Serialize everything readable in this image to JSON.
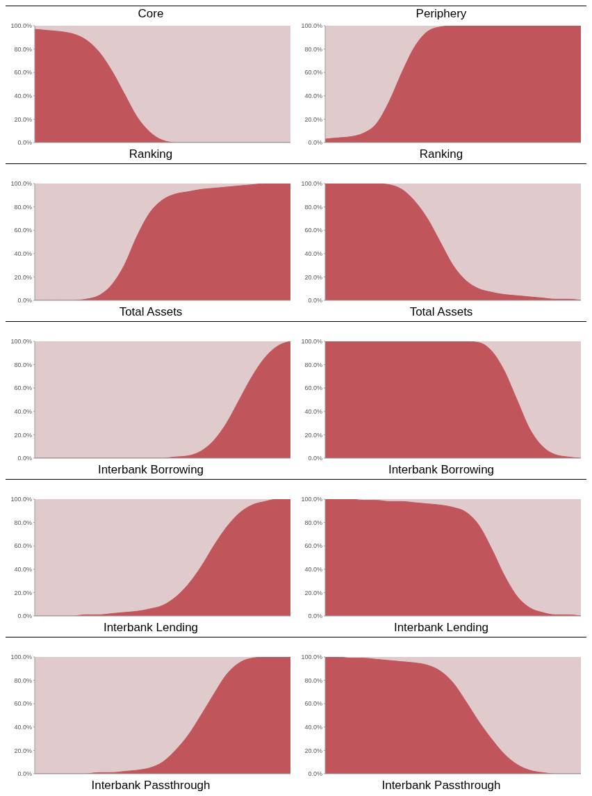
{
  "chart_data": [
    {
      "type": "area",
      "title": "Core",
      "xlabel": "Ranking",
      "ylim": [
        0,
        100
      ],
      "yticks": [
        {
          "value": 0,
          "label": "0.0%"
        },
        {
          "value": 20,
          "label": "20.0%"
        },
        {
          "value": 40,
          "label": "40.0%"
        },
        {
          "value": 60,
          "label": "60.0%"
        },
        {
          "value": 80,
          "label": "80.0%"
        },
        {
          "value": 100,
          "label": "100.0%"
        }
      ],
      "categories": [
        null,
        null,
        null,
        null,
        null,
        null,
        null,
        null,
        null,
        null,
        null,
        null,
        null,
        null,
        null,
        null,
        null,
        null,
        null,
        null,
        null
      ],
      "series": [
        {
          "color": "#c0565b",
          "values": [
            97,
            96,
            95,
            93,
            88,
            78,
            62,
            42,
            22,
            9,
            2,
            0,
            0,
            0,
            0,
            0,
            0,
            0,
            0,
            0,
            0
          ]
        }
      ]
    },
    {
      "type": "area",
      "title": "Periphery",
      "xlabel": "Ranking",
      "ylim": [
        0,
        100
      ],
      "yticks": [
        {
          "value": 0,
          "label": "0.0%"
        },
        {
          "value": 20,
          "label": "20.0%"
        },
        {
          "value": 40,
          "label": "40.0%"
        },
        {
          "value": 60,
          "label": "60.0%"
        },
        {
          "value": 80,
          "label": "80.0%"
        },
        {
          "value": 100,
          "label": "100.0%"
        }
      ],
      "categories": [
        null,
        null,
        null,
        null,
        null,
        null,
        null,
        null,
        null,
        null,
        null,
        null,
        null,
        null,
        null,
        null,
        null,
        null,
        null,
        null,
        null
      ],
      "series": [
        {
          "color": "#c0565b",
          "values": [
            3,
            4,
            5,
            8,
            16,
            35,
            60,
            82,
            95,
            99,
            100,
            100,
            100,
            100,
            100,
            100,
            100,
            100,
            100,
            100,
            100
          ]
        }
      ]
    },
    {
      "type": "area",
      "xlabel": "Total Assets",
      "ylim": [
        0,
        100
      ],
      "yticks": [
        {
          "value": 0,
          "label": "0.0%"
        },
        {
          "value": 20,
          "label": "20.0%"
        },
        {
          "value": 40,
          "label": "40.0%"
        },
        {
          "value": 60,
          "label": "60.0%"
        },
        {
          "value": 80,
          "label": "80.0%"
        },
        {
          "value": 100,
          "label": "100.0%"
        }
      ],
      "categories": [
        null,
        null,
        null,
        null,
        null,
        null,
        null,
        null,
        null,
        null,
        null,
        null,
        null,
        null,
        null,
        null,
        null,
        null,
        null,
        null,
        null
      ],
      "series": [
        {
          "color": "#c0565b",
          "values": [
            0,
            0,
            0,
            0,
            1,
            4,
            13,
            30,
            55,
            75,
            86,
            91,
            93,
            95,
            96,
            97,
            98,
            99,
            100,
            100,
            100
          ]
        }
      ]
    },
    {
      "type": "area",
      "xlabel": "Total Assets",
      "ylim": [
        0,
        100
      ],
      "yticks": [
        {
          "value": 0,
          "label": "0.0%"
        },
        {
          "value": 20,
          "label": "20.0%"
        },
        {
          "value": 40,
          "label": "40.0%"
        },
        {
          "value": 60,
          "label": "60.0%"
        },
        {
          "value": 80,
          "label": "80.0%"
        },
        {
          "value": 100,
          "label": "100.0%"
        }
      ],
      "categories": [
        null,
        null,
        null,
        null,
        null,
        null,
        null,
        null,
        null,
        null,
        null,
        null,
        null,
        null,
        null,
        null,
        null,
        null,
        null,
        null,
        null
      ],
      "series": [
        {
          "color": "#c0565b",
          "values": [
            100,
            100,
            100,
            100,
            100,
            99,
            95,
            85,
            70,
            50,
            30,
            17,
            10,
            7,
            5,
            4,
            3,
            2,
            1,
            1,
            0
          ]
        }
      ]
    },
    {
      "type": "area",
      "xlabel": "Interbank Borrowing",
      "ylim": [
        0,
        100
      ],
      "yticks": [
        {
          "value": 0,
          "label": "0.0%"
        },
        {
          "value": 20,
          "label": "20.0%"
        },
        {
          "value": 40,
          "label": "40.0%"
        },
        {
          "value": 60,
          "label": "60.0%"
        },
        {
          "value": 80,
          "label": "80.0%"
        },
        {
          "value": 100,
          "label": "100.0%"
        }
      ],
      "categories": [
        null,
        null,
        null,
        null,
        null,
        null,
        null,
        null,
        null,
        null,
        null,
        null,
        null,
        null,
        null,
        null,
        null,
        null,
        null,
        null,
        null
      ],
      "series": [
        {
          "color": "#c0565b",
          "values": [
            0,
            0,
            0,
            0,
            0,
            0,
            0,
            0,
            0,
            0,
            0,
            1,
            2,
            6,
            15,
            30,
            50,
            70,
            86,
            96,
            100
          ]
        }
      ]
    },
    {
      "type": "area",
      "xlabel": "Interbank Borrowing",
      "ylim": [
        0,
        100
      ],
      "yticks": [
        {
          "value": 0,
          "label": "0.0%"
        },
        {
          "value": 20,
          "label": "20.0%"
        },
        {
          "value": 40,
          "label": "40.0%"
        },
        {
          "value": 60,
          "label": "60.0%"
        },
        {
          "value": 80,
          "label": "80.0%"
        },
        {
          "value": 100,
          "label": "100.0%"
        }
      ],
      "categories": [
        null,
        null,
        null,
        null,
        null,
        null,
        null,
        null,
        null,
        null,
        null,
        null,
        null,
        null,
        null,
        null,
        null,
        null,
        null,
        null,
        null
      ],
      "series": [
        {
          "color": "#c0565b",
          "values": [
            100,
            100,
            100,
            100,
            100,
            100,
            100,
            100,
            100,
            100,
            100,
            100,
            99,
            92,
            75,
            50,
            25,
            10,
            3,
            1,
            0
          ]
        }
      ]
    },
    {
      "type": "area",
      "xlabel": "Interbank Lending",
      "ylim": [
        0,
        100
      ],
      "yticks": [
        {
          "value": 0,
          "label": "0.0%"
        },
        {
          "value": 20,
          "label": "20.0%"
        },
        {
          "value": 40,
          "label": "40.0%"
        },
        {
          "value": 60,
          "label": "60.0%"
        },
        {
          "value": 80,
          "label": "80.0%"
        },
        {
          "value": 100,
          "label": "100.0%"
        }
      ],
      "categories": [
        null,
        null,
        null,
        null,
        null,
        null,
        null,
        null,
        null,
        null,
        null,
        null,
        null,
        null,
        null,
        null,
        null,
        null,
        null,
        null,
        null
      ],
      "series": [
        {
          "color": "#c0565b",
          "values": [
            0,
            0,
            0,
            0,
            1,
            1,
            2,
            3,
            4,
            6,
            9,
            16,
            27,
            42,
            60,
            76,
            88,
            95,
            98,
            100,
            100
          ]
        }
      ]
    },
    {
      "type": "area",
      "xlabel": "Interbank Lending",
      "ylim": [
        0,
        100
      ],
      "yticks": [
        {
          "value": 0,
          "label": "0.0%"
        },
        {
          "value": 20,
          "label": "20.0%"
        },
        {
          "value": 40,
          "label": "40.0%"
        },
        {
          "value": 60,
          "label": "60.0%"
        },
        {
          "value": 80,
          "label": "80.0%"
        },
        {
          "value": 100,
          "label": "100.0%"
        }
      ],
      "categories": [
        null,
        null,
        null,
        null,
        null,
        null,
        null,
        null,
        null,
        null,
        null,
        null,
        null,
        null,
        null,
        null,
        null,
        null,
        null,
        null,
        null
      ],
      "series": [
        {
          "color": "#c0565b",
          "values": [
            100,
            100,
            100,
            99,
            99,
            98,
            98,
            97,
            96,
            95,
            93,
            89,
            78,
            58,
            35,
            17,
            7,
            3,
            1,
            1,
            0
          ]
        }
      ]
    },
    {
      "type": "area",
      "xlabel": "Interbank Passthrough",
      "ylim": [
        0,
        100
      ],
      "yticks": [
        {
          "value": 0,
          "label": "0.0%"
        },
        {
          "value": 20,
          "label": "20.0%"
        },
        {
          "value": 40,
          "label": "40.0%"
        },
        {
          "value": 60,
          "label": "60.0%"
        },
        {
          "value": 80,
          "label": "80.0%"
        },
        {
          "value": 100,
          "label": "100.0%"
        }
      ],
      "categories": [
        null,
        null,
        null,
        null,
        null,
        null,
        null,
        null,
        null,
        null,
        null,
        null,
        null,
        null,
        null,
        null,
        null,
        null,
        null,
        null,
        null
      ],
      "series": [
        {
          "color": "#c0565b",
          "values": [
            0,
            0,
            0,
            0,
            0,
            1,
            1,
            2,
            3,
            5,
            10,
            20,
            33,
            50,
            68,
            85,
            95,
            99,
            100,
            100,
            100
          ]
        }
      ]
    },
    {
      "type": "area",
      "xlabel": "Interbank Passthrough",
      "ylim": [
        0,
        100
      ],
      "yticks": [
        {
          "value": 0,
          "label": "0.0%"
        },
        {
          "value": 20,
          "label": "20.0%"
        },
        {
          "value": 40,
          "label": "40.0%"
        },
        {
          "value": 60,
          "label": "60.0%"
        },
        {
          "value": 80,
          "label": "80.0%"
        },
        {
          "value": 100,
          "label": "100.0%"
        }
      ],
      "categories": [
        null,
        null,
        null,
        null,
        null,
        null,
        null,
        null,
        null,
        null,
        null,
        null,
        null,
        null,
        null,
        null,
        null,
        null,
        null,
        null,
        null
      ],
      "series": [
        {
          "color": "#c0565b",
          "values": [
            100,
            100,
            99,
            99,
            98,
            97,
            96,
            95,
            93,
            88,
            78,
            62,
            45,
            30,
            17,
            8,
            3,
            1,
            0,
            0,
            0
          ]
        }
      ]
    }
  ]
}
